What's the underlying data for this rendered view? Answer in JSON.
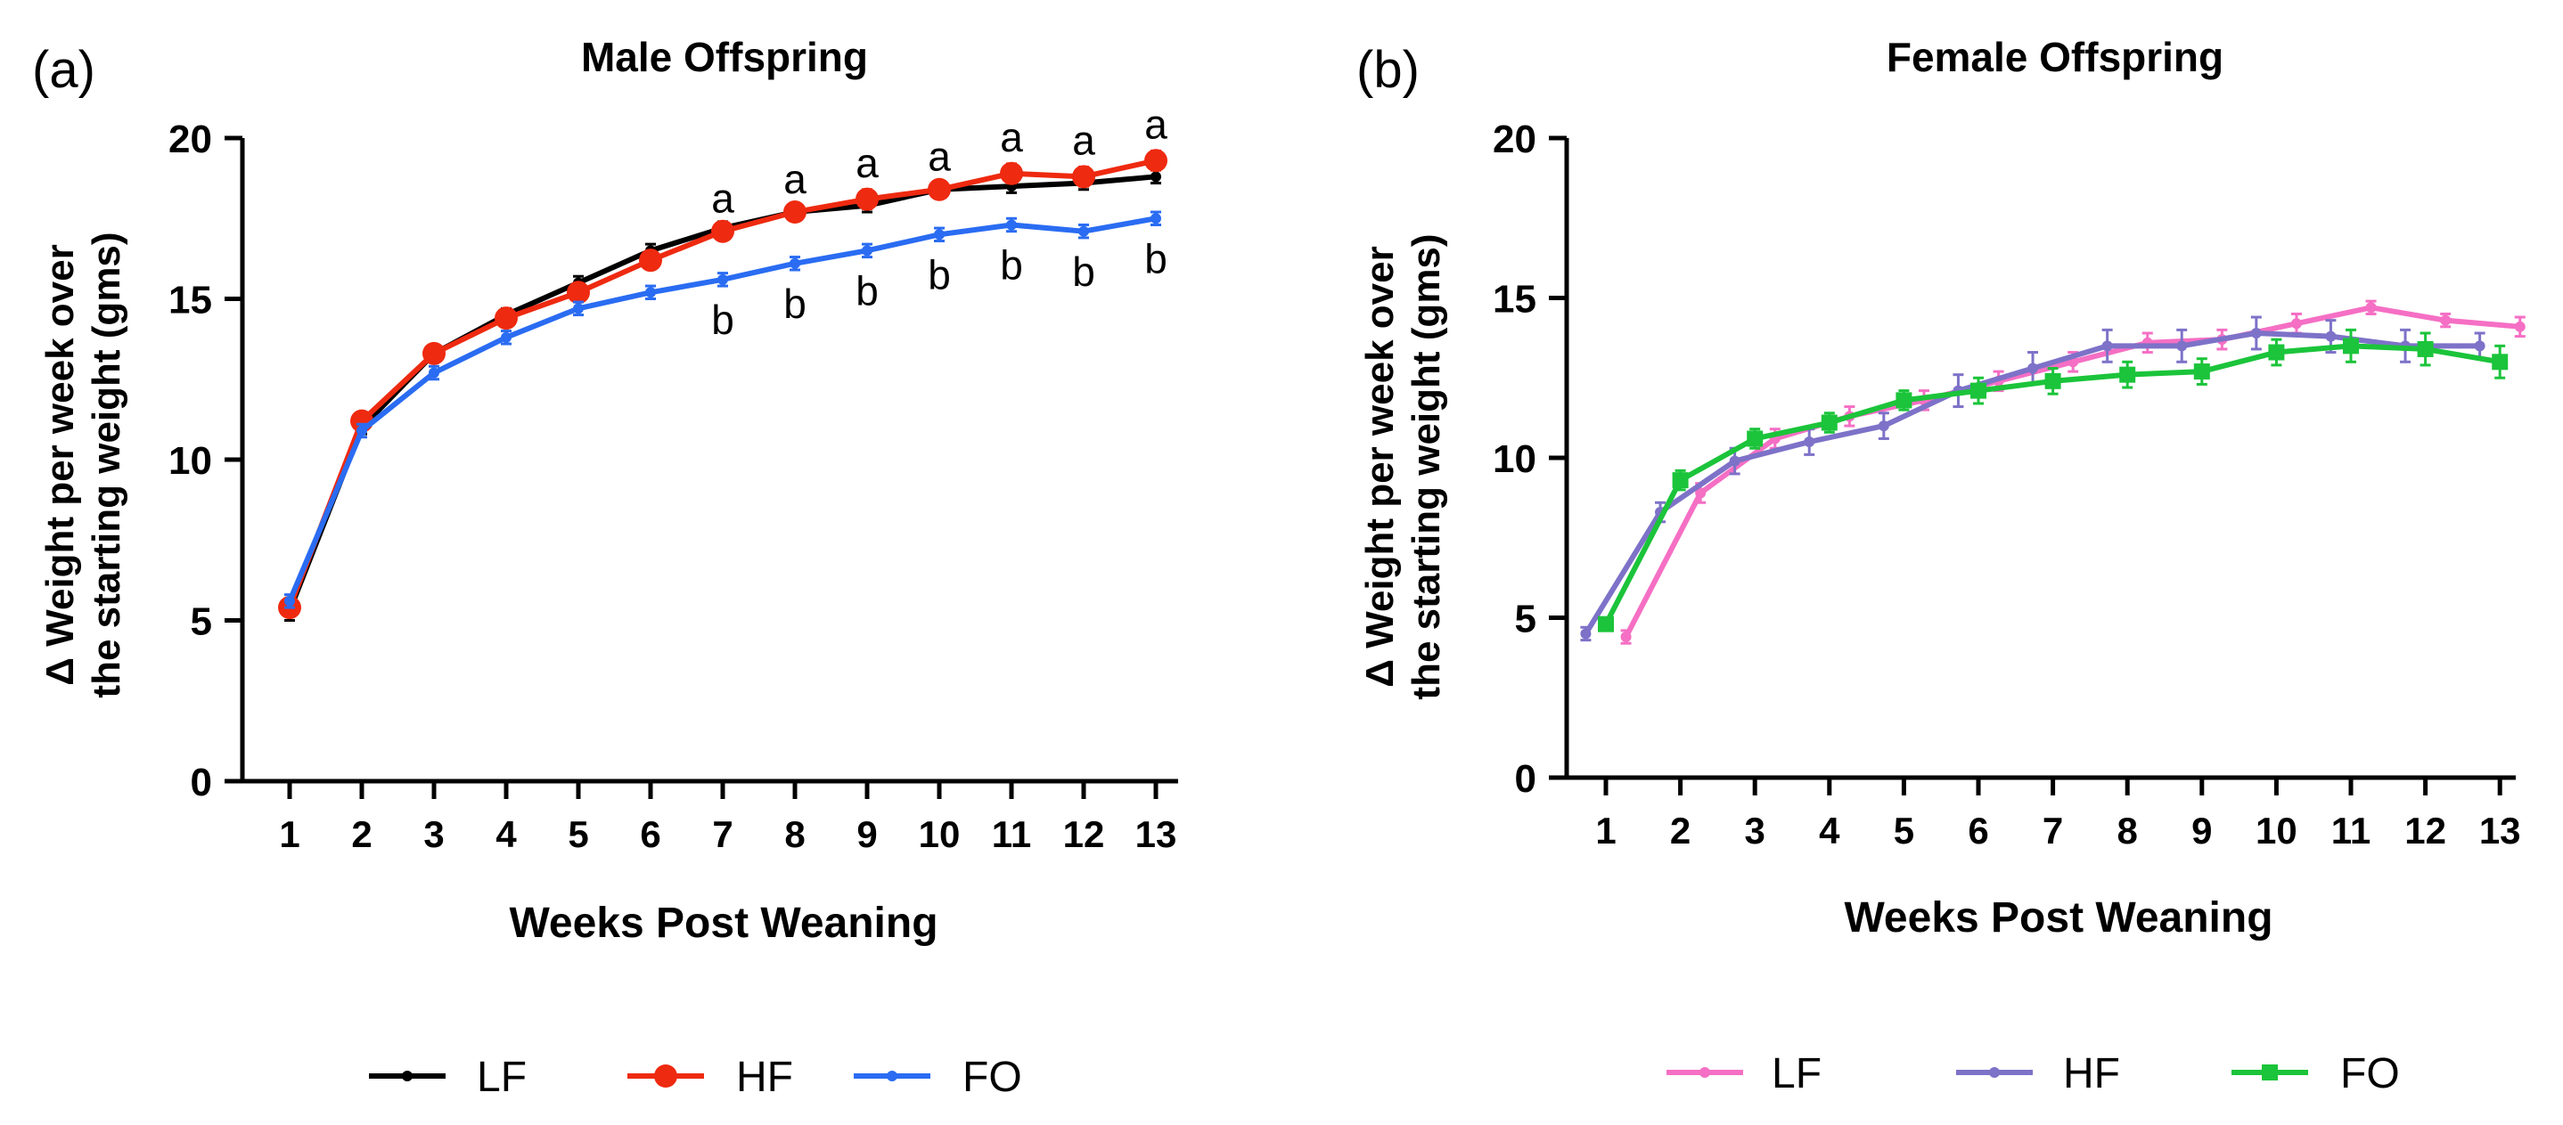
{
  "panels": [
    {
      "panel_label": "(a)",
      "title": "Male Offspring",
      "ylabel_line1": "Δ Weight per week over",
      "ylabel_line2": "the starting weight (gms)",
      "xlabel": "Weeks Post Weaning",
      "yticks": [
        "0",
        "5",
        "10",
        "15",
        "20"
      ],
      "xticks": [
        "1",
        "2",
        "3",
        "4",
        "5",
        "6",
        "7",
        "8",
        "9",
        "10",
        "11",
        "12",
        "13"
      ],
      "legend": [
        "LF",
        "HF",
        "FO"
      ],
      "annotations": {
        "a_label": "a",
        "b_label": "b",
        "weeks": [
          7,
          8,
          9,
          10,
          11,
          12,
          13
        ]
      }
    },
    {
      "panel_label": "(b)",
      "title": "Female Offspring",
      "ylabel_line1": "Δ Weight per week over",
      "ylabel_line2": "the starting weight (gms)",
      "xlabel": "Weeks Post Weaning",
      "yticks": [
        "0",
        "5",
        "10",
        "15",
        "20"
      ],
      "xticks": [
        "1",
        "2",
        "3",
        "4",
        "5",
        "6",
        "7",
        "8",
        "9",
        "10",
        "11",
        "12",
        "13"
      ],
      "legend": [
        "LF",
        "HF",
        "FO"
      ]
    }
  ],
  "chart_data": [
    {
      "type": "line",
      "title": "Male Offspring",
      "xlabel": "Weeks Post Weaning",
      "ylabel": "Δ Weight per week over the starting weight (gms)",
      "x": [
        1,
        2,
        3,
        4,
        5,
        6,
        7,
        8,
        9,
        10,
        11,
        12,
        13
      ],
      "xlim": [
        0.5,
        13.5
      ],
      "ylim": [
        0,
        20
      ],
      "series": [
        {
          "name": "LF",
          "color": "#000000",
          "marker": "small",
          "values": [
            5.3,
            11.0,
            13.3,
            14.5,
            15.5,
            16.5,
            17.2,
            17.7,
            17.9,
            18.4,
            18.5,
            18.6,
            18.8
          ],
          "errors": [
            0.3,
            0.2,
            0.2,
            0.2,
            0.2,
            0.2,
            0.2,
            0.2,
            0.2,
            0.2,
            0.2,
            0.2,
            0.2
          ]
        },
        {
          "name": "HF",
          "color": "#ee2a10",
          "marker": "large",
          "values": [
            5.4,
            11.2,
            13.3,
            14.4,
            15.2,
            16.2,
            17.1,
            17.7,
            18.1,
            18.4,
            18.9,
            18.8,
            19.3
          ],
          "errors": [
            0.2,
            0.2,
            0.2,
            0.2,
            0.2,
            0.2,
            0.2,
            0.2,
            0.3,
            0.2,
            0.3,
            0.3,
            0.3
          ]
        },
        {
          "name": "FO",
          "color": "#2a6cf2",
          "marker": "small",
          "values": [
            5.6,
            10.9,
            12.7,
            13.8,
            14.7,
            15.2,
            15.6,
            16.1,
            16.5,
            17.0,
            17.3,
            17.1,
            17.5
          ],
          "errors": [
            0.2,
            0.2,
            0.2,
            0.2,
            0.2,
            0.2,
            0.2,
            0.2,
            0.2,
            0.2,
            0.2,
            0.2,
            0.2
          ]
        }
      ]
    },
    {
      "type": "line",
      "title": "Female Offspring",
      "xlabel": "Weeks Post Weaning",
      "ylabel": "Δ Weight per week over the starting weight (gms)",
      "x": [
        1,
        2,
        3,
        4,
        5,
        6,
        7,
        8,
        9,
        10,
        11,
        12,
        13
      ],
      "xlim": [
        0.5,
        13.5
      ],
      "ylim": [
        0,
        20
      ],
      "series": [
        {
          "name": "LF",
          "color": "#f56fc4",
          "marker": "small",
          "x_offset": 0.27,
          "values": [
            4.4,
            8.9,
            10.6,
            11.3,
            11.8,
            12.4,
            13.0,
            13.6,
            13.7,
            14.2,
            14.7,
            14.3,
            14.1
          ],
          "errors": [
            0.2,
            0.3,
            0.3,
            0.3,
            0.3,
            0.3,
            0.3,
            0.3,
            0.3,
            0.3,
            0.2,
            0.2,
            0.3
          ]
        },
        {
          "name": "HF",
          "color": "#7d72c8",
          "marker": "small",
          "x_offset": -0.27,
          "values": [
            4.5,
            8.3,
            9.9,
            10.5,
            11.0,
            12.1,
            12.8,
            13.5,
            13.5,
            13.9,
            13.8,
            13.5,
            13.5
          ],
          "errors": [
            0.2,
            0.3,
            0.4,
            0.4,
            0.4,
            0.5,
            0.5,
            0.5,
            0.5,
            0.5,
            0.5,
            0.5,
            0.4
          ]
        },
        {
          "name": "FO",
          "color": "#1bc43a",
          "marker": "square",
          "x_offset": 0,
          "values": [
            4.8,
            9.3,
            10.6,
            11.1,
            11.8,
            12.1,
            12.4,
            12.6,
            12.7,
            13.3,
            13.5,
            13.4,
            13.0
          ],
          "errors": [
            0.2,
            0.3,
            0.3,
            0.3,
            0.3,
            0.4,
            0.4,
            0.4,
            0.4,
            0.4,
            0.5,
            0.5,
            0.5
          ]
        }
      ]
    }
  ]
}
